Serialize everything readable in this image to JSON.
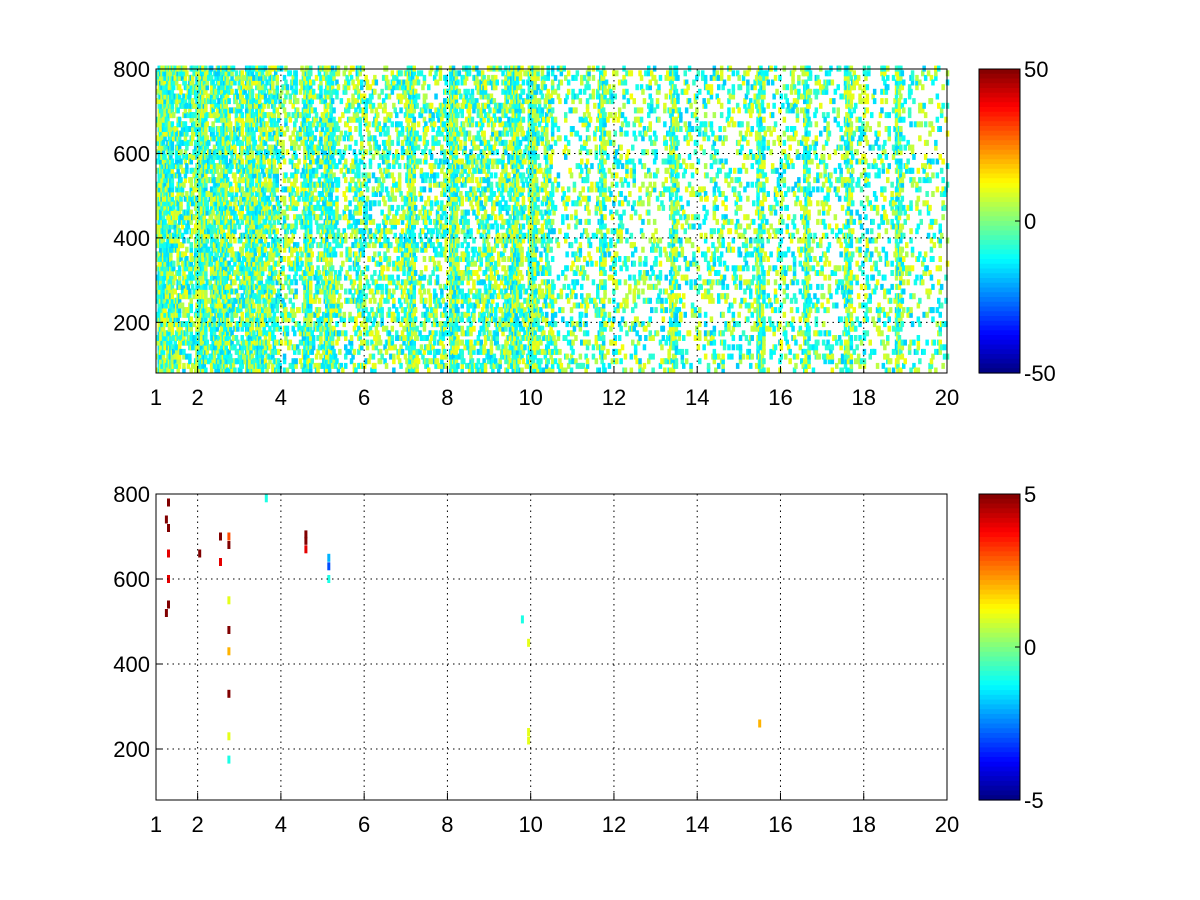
{
  "figure": {
    "panels": [
      {
        "xticks": [
          "1",
          "2",
          "4",
          "6",
          "8",
          "10",
          "12",
          "14",
          "16",
          "18",
          "20"
        ],
        "yticks": [
          "800",
          "600",
          "400",
          "200"
        ],
        "colorbar_ticks": [
          "50",
          "0",
          "-50"
        ]
      },
      {
        "xticks": [
          "1",
          "2",
          "4",
          "6",
          "8",
          "10",
          "12",
          "14",
          "16",
          "18",
          "20"
        ],
        "yticks": [
          "800",
          "600",
          "400",
          "200"
        ],
        "colorbar_ticks": [
          "5",
          "0",
          "-5"
        ]
      }
    ]
  },
  "chart_data": [
    {
      "type": "heatmap",
      "colormap": "jet",
      "xlim": [
        1,
        20
      ],
      "ylim": [
        80,
        800
      ],
      "xticks": [
        1,
        2,
        4,
        6,
        8,
        10,
        12,
        14,
        16,
        18,
        20
      ],
      "yticks": [
        200,
        400,
        600,
        800
      ],
      "grid": true,
      "clim": [
        -50,
        50
      ],
      "colorbar_ticks": [
        -50,
        0,
        50
      ],
      "bright_columns": [
        1.1,
        1.3,
        2.0,
        2.1,
        2.6,
        3.2,
        4.6,
        5.1,
        7.1,
        8.1,
        9.6,
        10.0,
        11.7,
        13.4,
        15.5,
        16.6,
        17.6,
        18.8
      ],
      "column_density": [
        {
          "x": [
            1,
            4
          ],
          "fill": 0.65
        },
        {
          "x": [
            4,
            8
          ],
          "fill": 0.35
        },
        {
          "x": [
            8,
            10.5
          ],
          "fill": 0.5
        },
        {
          "x": [
            10.5,
            20
          ],
          "fill": 0.2
        }
      ]
    },
    {
      "type": "heatmap",
      "colormap": "jet",
      "xlim": [
        1,
        20
      ],
      "ylim": [
        80,
        800
      ],
      "xticks": [
        1,
        2,
        4,
        6,
        8,
        10,
        12,
        14,
        16,
        18,
        20
      ],
      "yticks": [
        200,
        400,
        600,
        800
      ],
      "grid": true,
      "clim": [
        -5,
        5
      ],
      "colorbar_ticks": [
        -5,
        0,
        5
      ],
      "points": [
        {
          "x": 1.3,
          "y": 780,
          "v": 5
        },
        {
          "x": 1.3,
          "y": 720,
          "v": 5
        },
        {
          "x": 1.3,
          "y": 660,
          "v": 4
        },
        {
          "x": 1.3,
          "y": 600,
          "v": 4
        },
        {
          "x": 1.3,
          "y": 540,
          "v": 5
        },
        {
          "x": 1.25,
          "y": 740,
          "v": 5
        },
        {
          "x": 1.25,
          "y": 520,
          "v": 5
        },
        {
          "x": 2.05,
          "y": 660,
          "v": 5
        },
        {
          "x": 2.55,
          "y": 700,
          "v": 5
        },
        {
          "x": 2.55,
          "y": 640,
          "v": 4
        },
        {
          "x": 2.75,
          "y": 700,
          "v": 3
        },
        {
          "x": 2.75,
          "y": 680,
          "v": 5
        },
        {
          "x": 2.75,
          "y": 550,
          "v": 1
        },
        {
          "x": 2.75,
          "y": 480,
          "v": 5
        },
        {
          "x": 2.75,
          "y": 430,
          "v": 2
        },
        {
          "x": 2.75,
          "y": 330,
          "v": 5
        },
        {
          "x": 2.75,
          "y": 230,
          "v": 1
        },
        {
          "x": 2.75,
          "y": 175,
          "v": -1
        },
        {
          "x": 3.65,
          "y": 790,
          "v": -1
        },
        {
          "x": 4.6,
          "y": 705,
          "v": 5
        },
        {
          "x": 4.6,
          "y": 690,
          "v": 5
        },
        {
          "x": 4.6,
          "y": 670,
          "v": 4
        },
        {
          "x": 5.15,
          "y": 650,
          "v": -2
        },
        {
          "x": 5.15,
          "y": 630,
          "v": -3
        },
        {
          "x": 5.15,
          "y": 600,
          "v": -1
        },
        {
          "x": 9.8,
          "y": 505,
          "v": -1
        },
        {
          "x": 9.95,
          "y": 450,
          "v": 1
        },
        {
          "x": 9.95,
          "y": 240,
          "v": 1
        },
        {
          "x": 9.95,
          "y": 220,
          "v": 1
        },
        {
          "x": 15.5,
          "y": 260,
          "v": 2
        }
      ]
    }
  ]
}
